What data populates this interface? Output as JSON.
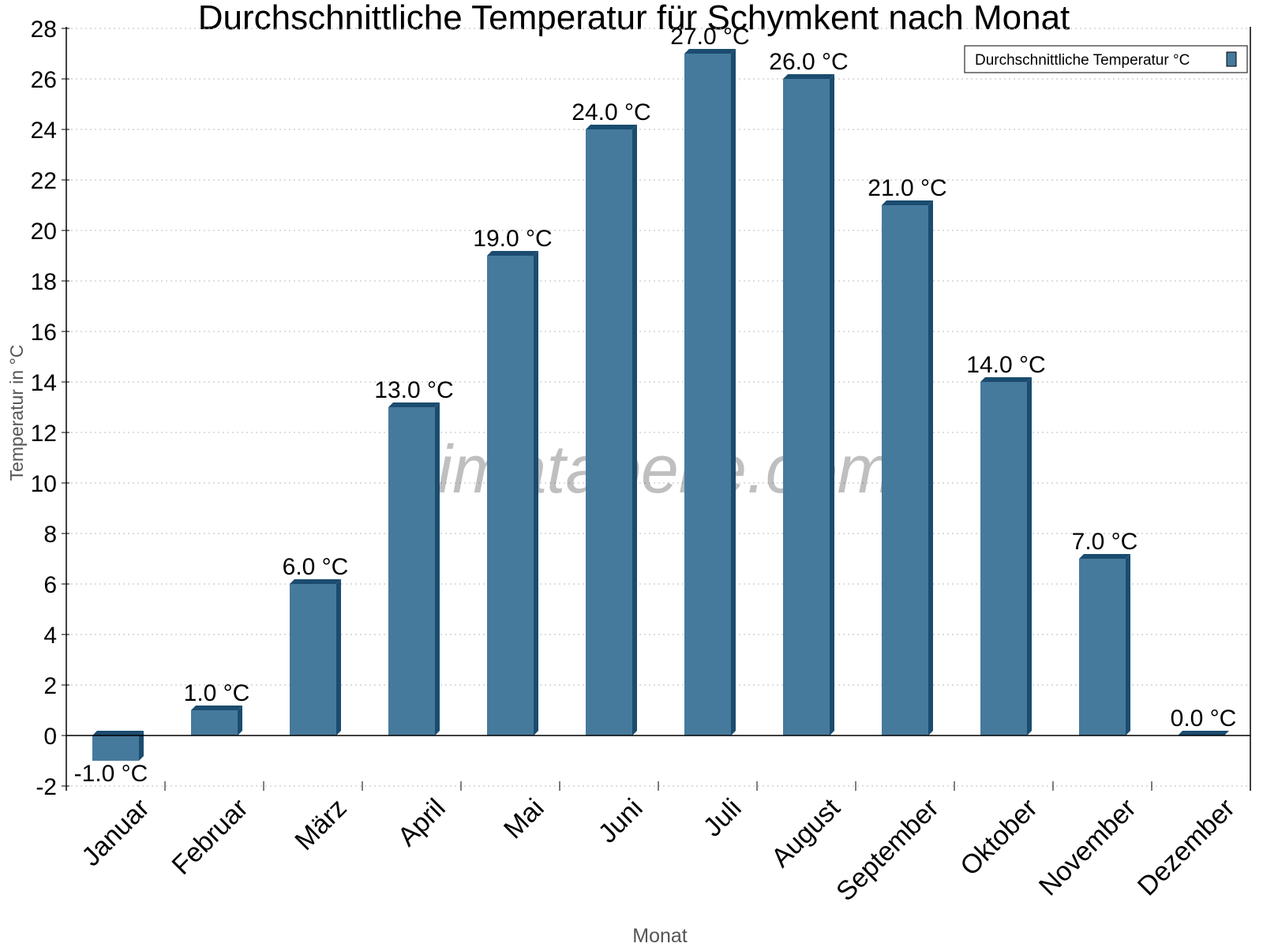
{
  "chart_data": {
    "type": "bar",
    "title": "Durchschnittliche Temperatur für Schymkent nach Monat",
    "xlabel": "Monat",
    "ylabel": "Temperatur in °C",
    "categories": [
      "Januar",
      "Februar",
      "März",
      "April",
      "Mai",
      "Juni",
      "Juli",
      "August",
      "September",
      "Oktober",
      "November",
      "Dezember"
    ],
    "series": [
      {
        "name": "Durchschnittliche Temperatur °C",
        "values": [
          -1.0,
          1.0,
          6.0,
          13.0,
          19.0,
          24.0,
          27.0,
          26.0,
          21.0,
          14.0,
          7.0,
          0.0
        ]
      }
    ],
    "data_labels": [
      "-1.0 °C",
      "1.0 °C",
      "6.0 °C",
      "13.0 °C",
      "19.0 °C",
      "24.0 °C",
      "27.0 °C",
      "26.0 °C",
      "21.0 °C",
      "14.0 °C",
      "7.0 °C",
      "0.0 °C"
    ],
    "ylim": [
      -2,
      28
    ],
    "yticks": [
      "-2",
      "0",
      "2",
      "4",
      "6",
      "8",
      "10",
      "12",
      "14",
      "16",
      "18",
      "20",
      "22",
      "24",
      "26",
      "28"
    ],
    "grid": true,
    "legend_position": "top-right",
    "colors": {
      "bar_front": "#467a9c",
      "bar_side": "#1b4c6f"
    },
    "watermark": "klimatabelle.com"
  }
}
